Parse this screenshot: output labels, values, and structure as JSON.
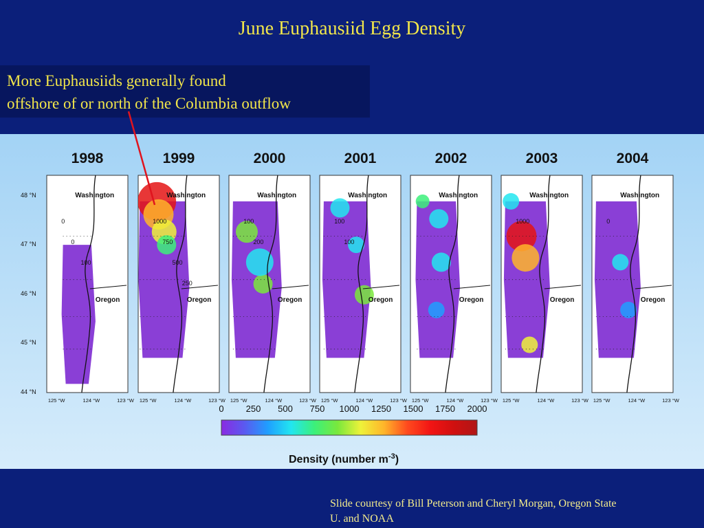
{
  "slide": {
    "title": "June Euphausiid Egg Density",
    "callout": {
      "line1": "More Euphausiids generally found",
      "line2": "offshore of or north of the Columbia outflow"
    },
    "credit": {
      "line1": "Slide courtesy of Bill Peterson and Cheryl Morgan, Oregon State",
      "line2": "U. and NOAA"
    }
  },
  "figure": {
    "years": [
      "1998",
      "1999",
      "2000",
      "2001",
      "2002",
      "2003",
      "2004"
    ],
    "lat_labels": [
      "48 °N",
      "47 °N",
      "46 °N",
      "45 °N",
      "44 °N"
    ],
    "lon_labels": [
      "125 °W",
      "124 °W",
      "123 °W"
    ],
    "region_labels": {
      "north": "Washington",
      "south": "Oregon"
    },
    "contour_labels": {
      "1998": [
        "0",
        "0",
        "100"
      ],
      "1999": [
        "1000",
        "750",
        "500",
        "250"
      ],
      "2000": [
        "100",
        "200"
      ],
      "2001": [
        "100",
        "100"
      ],
      "2002": [],
      "2003": [
        "1000"
      ],
      "2004": [
        "0"
      ]
    },
    "colorbar": {
      "ticks": [
        "0",
        "250",
        "500",
        "750",
        "1000",
        "1250",
        "1500",
        "1750",
        "2000"
      ],
      "label_text": "Density (number m",
      "label_exp": "-3",
      "label_end": ")",
      "colors": [
        "#8a2be2",
        "#5a5af0",
        "#1f9fff",
        "#22e6f0",
        "#3cf07a",
        "#7ae83c",
        "#eef23a",
        "#ffb52a",
        "#ff4a1e",
        "#f21414",
        "#d01010",
        "#b01616"
      ]
    },
    "colors": {
      "panel_bg": "#a9d6f5",
      "low": "#8a3fd6",
      "text": "#0a0a0a"
    }
  }
}
